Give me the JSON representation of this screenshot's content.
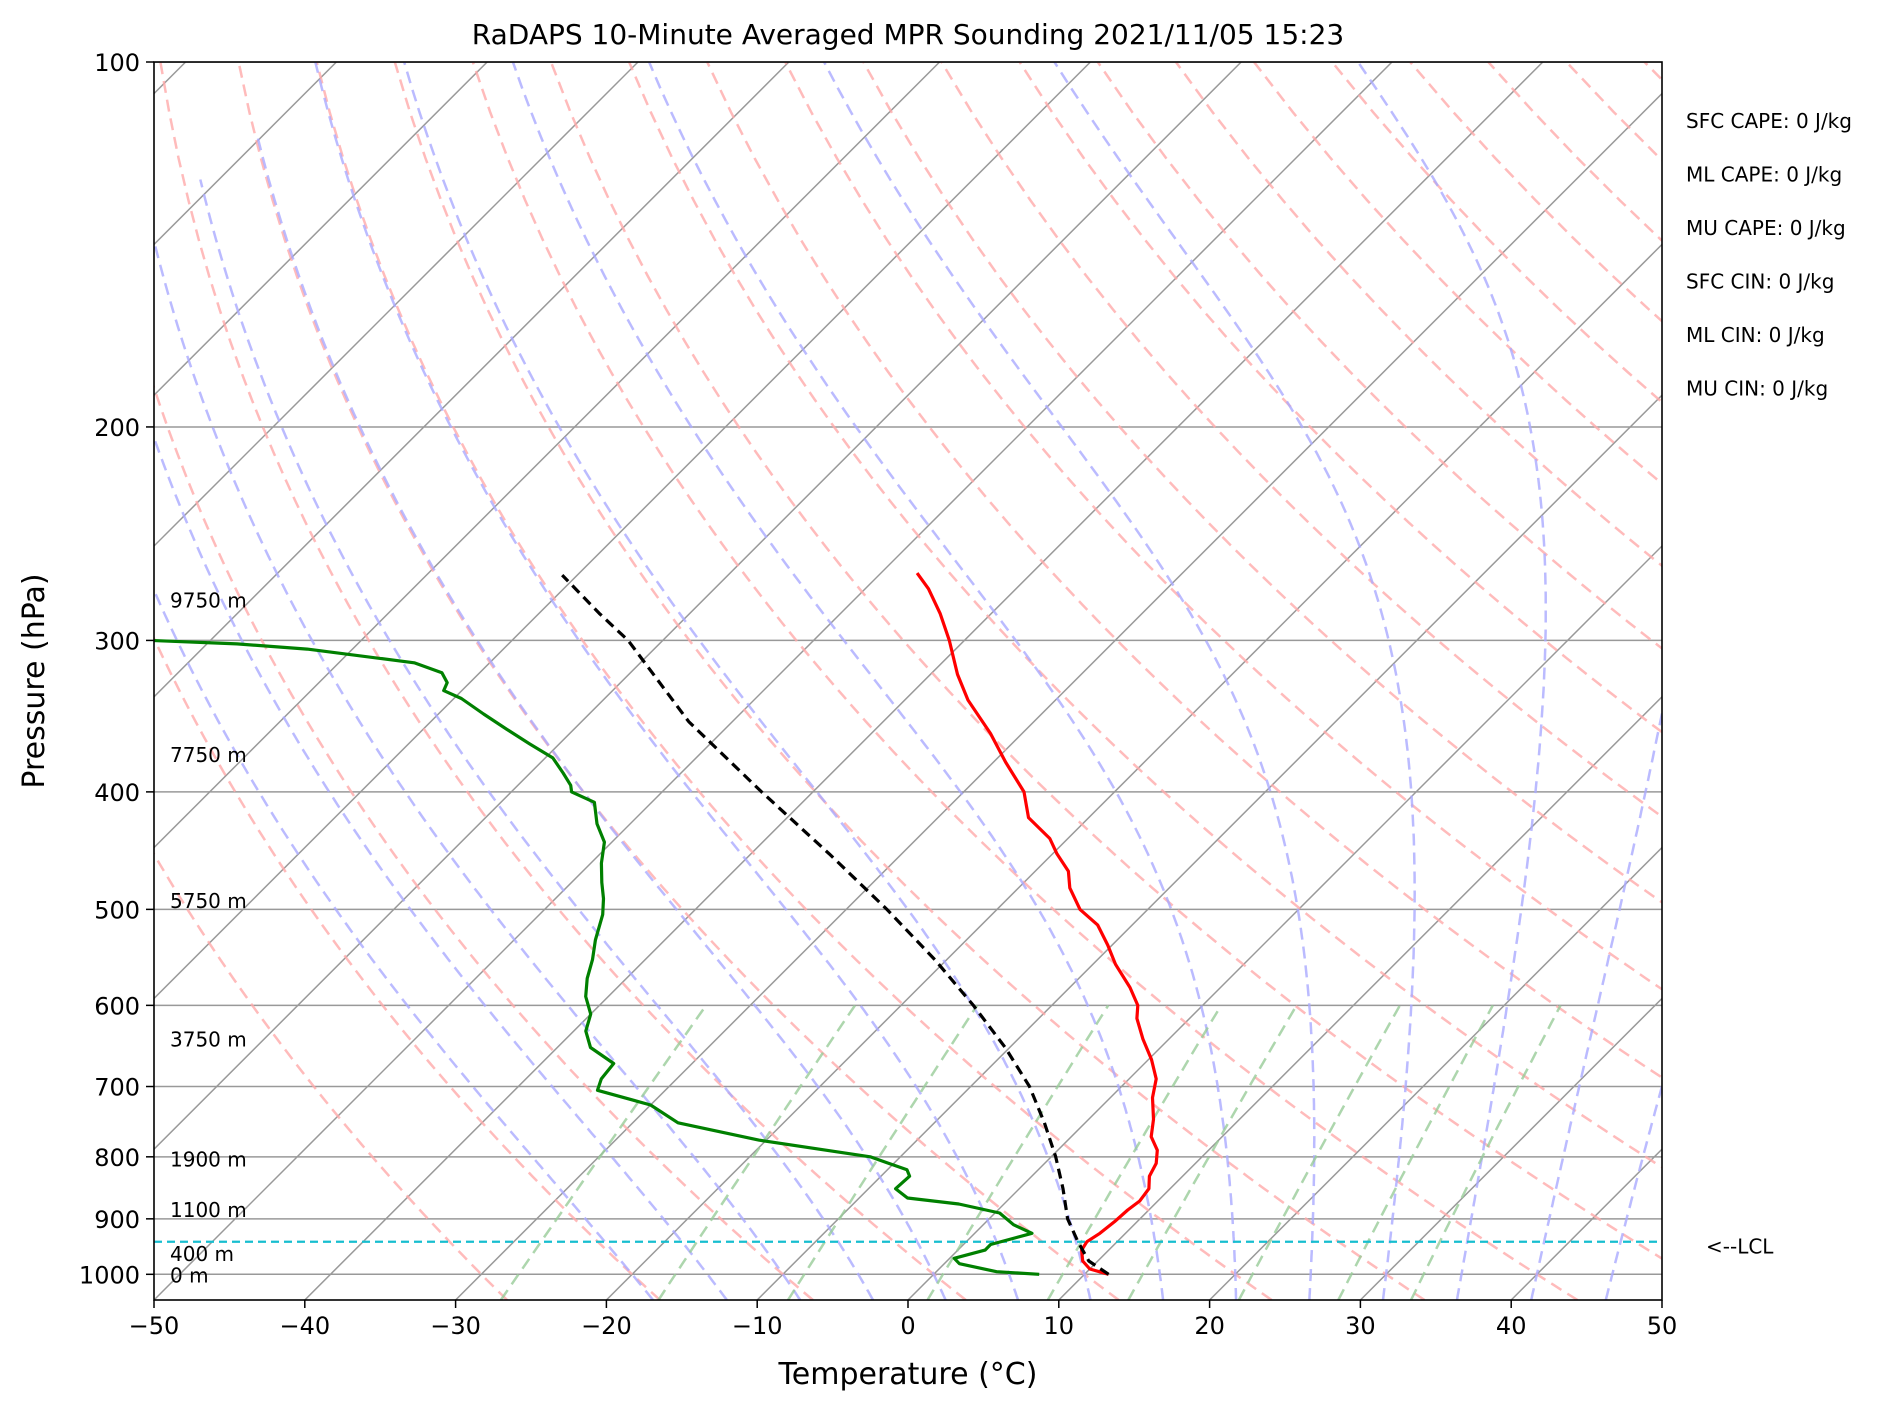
{
  "chart_data": {
    "type": "line",
    "subtype": "skew-t log-p sounding",
    "title": "RaDAPS 10-Minute Averaged MPR Sounding 2021/11/05 15:23",
    "xlabel": "Temperature (°C)",
    "ylabel": "Pressure (hPa)",
    "xlim": [
      -50,
      50
    ],
    "ylim": [
      1050,
      100
    ],
    "y_scale": "log",
    "skew_degrees": 45,
    "grid": true,
    "x_ticks": [
      "−50",
      "−40",
      "−30",
      "−20",
      "−10",
      "0",
      "10",
      "20",
      "30",
      "40",
      "50"
    ],
    "x_tick_values": [
      -50,
      -40,
      -30,
      -20,
      -10,
      0,
      10,
      20,
      30,
      40,
      50
    ],
    "y_ticks": [
      "100",
      "200",
      "300",
      "400",
      "500",
      "600",
      "700",
      "800",
      "900",
      "1000"
    ],
    "y_tick_values": [
      100,
      200,
      300,
      400,
      500,
      600,
      700,
      800,
      900,
      1000
    ],
    "height_labels": [
      {
        "text": "9750 m",
        "p": 278
      },
      {
        "text": "7750 m",
        "p": 373
      },
      {
        "text": "5750 m",
        "p": 492
      },
      {
        "text": "3750 m",
        "p": 640
      },
      {
        "text": "1900 m",
        "p": 804
      },
      {
        "text": "1100 m",
        "p": 885
      },
      {
        "text": "400 m",
        "p": 962
      },
      {
        "text": "0 m",
        "p": 1002
      }
    ],
    "indices": [
      "SFC CAPE: 0 J/kg",
      "ML CAPE: 0 J/kg",
      "MU CAPE: 0 J/kg",
      "SFC CIN: 0 J/kg",
      "ML CIN: 0 J/kg",
      "MU CIN: 0 J/kg"
    ],
    "lcl": {
      "label": "<--LCL",
      "p": 940
    },
    "colors": {
      "temperature": "#ff0000",
      "dewpoint": "#008000",
      "parcel": "#000000",
      "lcl": "#17becf",
      "dry_adiabat": "#ffaaaa",
      "moist_adiabat": "#aaaaff",
      "mixing_ratio": "#99cc99",
      "isotherm": "#999999"
    },
    "series": [
      {
        "role": "temperature",
        "points": [
          [
            11.6,
            1000
          ],
          [
            10.0,
            990
          ],
          [
            9.0,
            975
          ],
          [
            8.2,
            955
          ],
          [
            8.0,
            940
          ],
          [
            8.3,
            925
          ],
          [
            8.5,
            905
          ],
          [
            8.6,
            885
          ],
          [
            8.8,
            870
          ],
          [
            8.6,
            850
          ],
          [
            7.8,
            830
          ],
          [
            7.4,
            810
          ],
          [
            6.6,
            790
          ],
          [
            5.3,
            770
          ],
          [
            4.3,
            745
          ],
          [
            2.8,
            715
          ],
          [
            1.8,
            690
          ],
          [
            0.2,
            665
          ],
          [
            -1.7,
            640
          ],
          [
            -3.5,
            615
          ],
          [
            -4.3,
            600
          ],
          [
            -6.0,
            580
          ],
          [
            -8.5,
            555
          ],
          [
            -10.3,
            535
          ],
          [
            -12.3,
            515
          ],
          [
            -14.5,
            500
          ],
          [
            -16.6,
            480
          ],
          [
            -17.8,
            465
          ],
          [
            -19.7,
            450
          ],
          [
            -21.2,
            437
          ],
          [
            -24.0,
            420
          ],
          [
            -26.0,
            400
          ],
          [
            -29.2,
            378
          ],
          [
            -32.1,
            358
          ],
          [
            -35.8,
            336
          ],
          [
            -38.2,
            320
          ],
          [
            -41.0,
            300
          ],
          [
            -43.4,
            285
          ],
          [
            -45.8,
            272
          ],
          [
            -47.6,
            264
          ]
        ]
      },
      {
        "role": "dewpoint",
        "points": [
          [
            7.0,
            1000
          ],
          [
            4.0,
            995
          ],
          [
            1.0,
            980
          ],
          [
            0.3,
            970
          ],
          [
            1.8,
            955
          ],
          [
            1.8,
            945
          ],
          [
            3.8,
            925
          ],
          [
            2.0,
            910
          ],
          [
            0.3,
            890
          ],
          [
            -3.0,
            875
          ],
          [
            -6.8,
            865
          ],
          [
            -8.2,
            850
          ],
          [
            -8.1,
            830
          ],
          [
            -8.7,
            820
          ],
          [
            -12.0,
            800
          ],
          [
            -20.5,
            775
          ],
          [
            -27.0,
            750
          ],
          [
            -30.0,
            725
          ],
          [
            -34.5,
            705
          ],
          [
            -35.0,
            690
          ],
          [
            -35.2,
            670
          ],
          [
            -37.8,
            650
          ],
          [
            -39.2,
            630
          ],
          [
            -40.0,
            610
          ],
          [
            -41.5,
            590
          ],
          [
            -42.6,
            570
          ],
          [
            -43.5,
            550
          ],
          [
            -44.6,
            530
          ],
          [
            -45.8,
            505
          ],
          [
            -46.8,
            490
          ],
          [
            -48.0,
            475
          ],
          [
            -49.3,
            458
          ],
          [
            -50.5,
            440
          ],
          [
            -52.2,
            425
          ],
          [
            -53.8,
            408
          ],
          [
            -56.0,
            400
          ],
          [
            -56.5,
            395
          ],
          [
            -57.8,
            386
          ],
          [
            -59.5,
            375
          ],
          [
            -62.0,
            365
          ],
          [
            -64.5,
            355
          ],
          [
            -67.0,
            345
          ],
          [
            -69.5,
            335
          ],
          [
            -71.2,
            330
          ],
          [
            -71.5,
            325
          ],
          [
            -72.5,
            319
          ],
          [
            -75.0,
            313
          ],
          [
            -83.0,
            305
          ],
          [
            -88.0,
            302
          ],
          [
            -100.0,
            298
          ]
        ]
      },
      {
        "role": "parcel",
        "points": [
          [
            11.6,
            1000
          ],
          [
            9.4,
            975
          ],
          [
            7.4,
            940
          ],
          [
            5.2,
            900
          ],
          [
            2.9,
            850
          ],
          [
            0.3,
            800
          ],
          [
            -2.7,
            750
          ],
          [
            -6.1,
            700
          ],
          [
            -10.3,
            650
          ],
          [
            -15.2,
            600
          ],
          [
            -20.8,
            550
          ],
          [
            -27.3,
            500
          ],
          [
            -34.8,
            450
          ],
          [
            -43.4,
            400
          ],
          [
            -52.9,
            350
          ],
          [
            -62.3,
            300
          ],
          [
            -66.0,
            285
          ],
          [
            -71.0,
            265
          ]
        ]
      }
    ]
  }
}
